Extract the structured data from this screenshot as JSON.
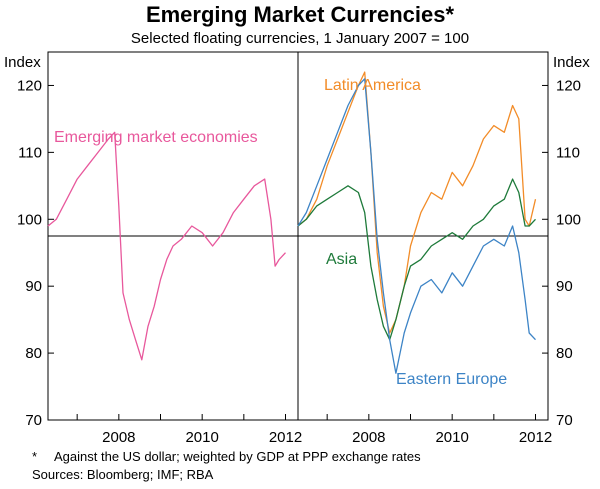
{
  "title": "Emerging Market Currencies*",
  "subtitle": "Selected floating currencies, 1 January 2007 = 100",
  "footnote_mark": "*",
  "footnote": "Against the US dollar; weighted by GDP at PPP exchange rates",
  "sources": "Sources: Bloomberg; IMF; RBA",
  "colors": {
    "emerging": "#e8589c",
    "latin": "#f28c28",
    "asia": "#1e7a3a",
    "eastern": "#3d84c6"
  },
  "chart_data": [
    {
      "type": "line",
      "panel": "left",
      "ylabel": "Index",
      "ylim": [
        70,
        125
      ],
      "yticks": [
        70,
        80,
        90,
        100,
        110,
        120
      ],
      "xlim": [
        2006.3,
        2012.3
      ],
      "xticks": [
        2008,
        2010,
        2012
      ],
      "xticklabels": [
        "2008",
        "2010",
        "2012"
      ],
      "grid": false,
      "series": [
        {
          "name": "Emerging market economies",
          "x": [
            2006.3,
            2006.5,
            2006.75,
            2007.0,
            2007.25,
            2007.5,
            2007.75,
            2007.9,
            2008.0,
            2008.1,
            2008.25,
            2008.4,
            2008.55,
            2008.7,
            2008.85,
            2009.0,
            2009.15,
            2009.3,
            2009.5,
            2009.75,
            2010.0,
            2010.25,
            2010.5,
            2010.75,
            2011.0,
            2011.25,
            2011.5,
            2011.65,
            2011.75,
            2011.85,
            2012.0
          ],
          "values": [
            99,
            100,
            103,
            106,
            108,
            110,
            112,
            113,
            102,
            89,
            85,
            82,
            79,
            84,
            87,
            91,
            94,
            96,
            97,
            99,
            98,
            96,
            98,
            101,
            103,
            105,
            106,
            100,
            93,
            94,
            95
          ]
        }
      ]
    },
    {
      "type": "line",
      "panel": "right",
      "ylabel": "Index",
      "ylim": [
        70,
        125
      ],
      "yticks": [
        70,
        80,
        90,
        100,
        110,
        120
      ],
      "xlim": [
        2006.3,
        2012.3
      ],
      "xticks": [
        2008,
        2010,
        2012
      ],
      "xticklabels": [
        "2008",
        "2010",
        "2012"
      ],
      "grid": false,
      "series": [
        {
          "name": "Latin America",
          "x": [
            2006.3,
            2006.5,
            2006.75,
            2007.0,
            2007.25,
            2007.5,
            2007.75,
            2007.9,
            2008.05,
            2008.2,
            2008.35,
            2008.5,
            2008.65,
            2008.85,
            2009.0,
            2009.25,
            2009.5,
            2009.75,
            2010.0,
            2010.25,
            2010.5,
            2010.75,
            2011.0,
            2011.25,
            2011.45,
            2011.6,
            2011.75,
            2011.85,
            2012.0
          ],
          "values": [
            99,
            100,
            103,
            108,
            112,
            116,
            120,
            122,
            110,
            95,
            87,
            83,
            85,
            90,
            96,
            101,
            104,
            103,
            107,
            105,
            108,
            112,
            114,
            113,
            117,
            115,
            100,
            99,
            103
          ]
        },
        {
          "name": "Asia",
          "x": [
            2006.3,
            2006.5,
            2006.75,
            2007.0,
            2007.25,
            2007.5,
            2007.75,
            2007.9,
            2008.05,
            2008.2,
            2008.35,
            2008.5,
            2008.65,
            2008.85,
            2009.0,
            2009.25,
            2009.5,
            2009.75,
            2010.0,
            2010.25,
            2010.5,
            2010.75,
            2011.0,
            2011.25,
            2011.45,
            2011.6,
            2011.75,
            2011.85,
            2012.0
          ],
          "values": [
            99,
            100,
            102,
            103,
            104,
            105,
            104,
            101,
            93,
            88,
            84,
            82,
            85,
            90,
            93,
            94,
            96,
            97,
            98,
            97,
            99,
            100,
            102,
            103,
            106,
            104,
            99,
            99,
            100
          ]
        },
        {
          "name": "Eastern Europe",
          "x": [
            2006.3,
            2006.5,
            2006.75,
            2007.0,
            2007.25,
            2007.5,
            2007.75,
            2007.9,
            2008.05,
            2008.2,
            2008.35,
            2008.5,
            2008.65,
            2008.85,
            2009.0,
            2009.25,
            2009.5,
            2009.75,
            2010.0,
            2010.25,
            2010.5,
            2010.75,
            2011.0,
            2011.25,
            2011.45,
            2011.6,
            2011.75,
            2011.85,
            2012.0
          ],
          "values": [
            99,
            101,
            105,
            109,
            113,
            117,
            120,
            121,
            110,
            97,
            89,
            82,
            77,
            83,
            86,
            90,
            91,
            89,
            92,
            90,
            93,
            96,
            97,
            96,
            99,
            95,
            88,
            83,
            82
          ]
        }
      ]
    }
  ]
}
